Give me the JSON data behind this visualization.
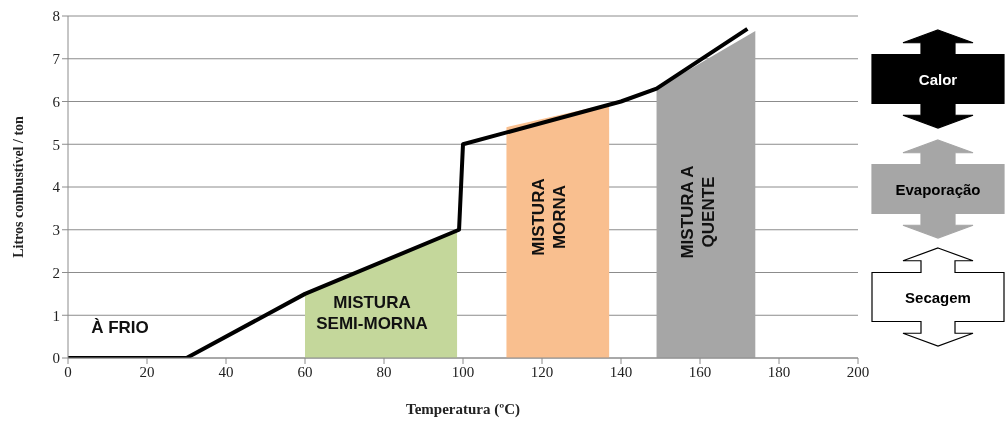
{
  "chart_data": {
    "type": "line",
    "xlabel": "Temperatura (ºC)",
    "ylabel": "Litros combustível / ton",
    "xlim": [
      0,
      200
    ],
    "xticks": [
      0,
      20,
      40,
      60,
      80,
      100,
      120,
      140,
      160,
      180,
      200
    ],
    "ylim": [
      0,
      8
    ],
    "yticks": [
      0,
      1,
      2,
      3,
      4,
      5,
      6,
      7,
      8
    ],
    "grid": "y",
    "legend": false,
    "marker": "none",
    "line_style": "solid",
    "series": [
      {
        "type": "area",
        "color": "#c4d79b",
        "x": [
          60,
          98.5
        ],
        "values": [
          1.5,
          2.95
        ]
      },
      {
        "type": "area",
        "color": "#f9bf8f",
        "x": [
          111,
          137
        ],
        "values": [
          5.4,
          5.95
        ]
      },
      {
        "type": "area",
        "color": "#a6a6a6",
        "x": [
          149,
          174
        ],
        "values": [
          6.3,
          7.65
        ]
      },
      {
        "color": "#000000",
        "x": [
          0,
          30,
          60,
          99,
          100,
          140,
          149,
          172
        ],
        "values": [
          0,
          0,
          1.5,
          3,
          5,
          6,
          6.3,
          7.7
        ]
      }
    ],
    "annotations": [
      "À FRIO",
      "MISTURA\nSEMI-MORNA",
      "MISTURA\nMORNA",
      "MISTURA A\nQUENTE",
      "Calor",
      "Evaporação",
      "Secagem"
    ]
  }
}
